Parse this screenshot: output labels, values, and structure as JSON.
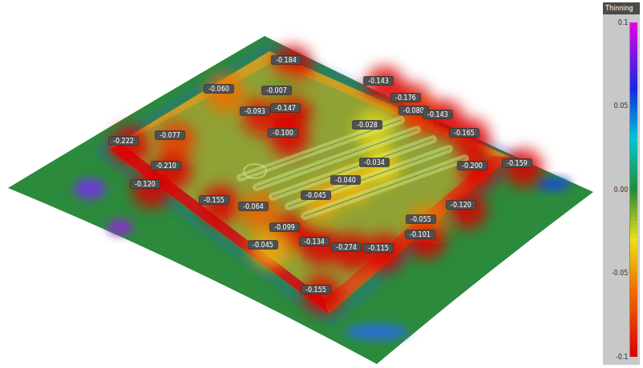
{
  "chart_data": {
    "type": "heatmap",
    "title": "Thinning",
    "zlim": [
      -0.1,
      0.1
    ],
    "zticks": [
      0.1,
      0.05,
      {
        "value": 0,
        "label": "0.00"
      },
      -0.05,
      -0.1
    ]
  },
  "probes": {
    "values": [
      -0.184,
      -0.06,
      -0.007,
      -0.143,
      -0.093,
      -0.147,
      -0.176,
      -0.08,
      -0.143,
      -0.1,
      -0.028,
      -0.165,
      -0.077,
      -0.222,
      -0.21,
      -0.034,
      -0.2,
      -0.159,
      -0.12,
      -0.04,
      -0.045,
      -0.155,
      -0.064,
      -0.12,
      -0.055,
      -0.099,
      -0.101,
      -0.134,
      -0.274,
      -0.115,
      -0.045,
      -0.155
    ],
    "value_labels": [
      "-0.184",
      "-0.060",
      "-0.007",
      "-0.143",
      "-0.093",
      "-0.147",
      "-0.176",
      "-0.080",
      "-0.143",
      "-0.100",
      "-0.028",
      "-0.165",
      "-0.077",
      "-0.222",
      "-0.210",
      "-0.034",
      "-0.200",
      "-0.159",
      "-0.120",
      "-0.040",
      "-0.045",
      "-0.155",
      "-0.064",
      "-0.120",
      "-0.055",
      "-0.099",
      "-0.101",
      "-0.134",
      "-0.274",
      "-0.115",
      "-0.045",
      "-0.155"
    ]
  }
}
